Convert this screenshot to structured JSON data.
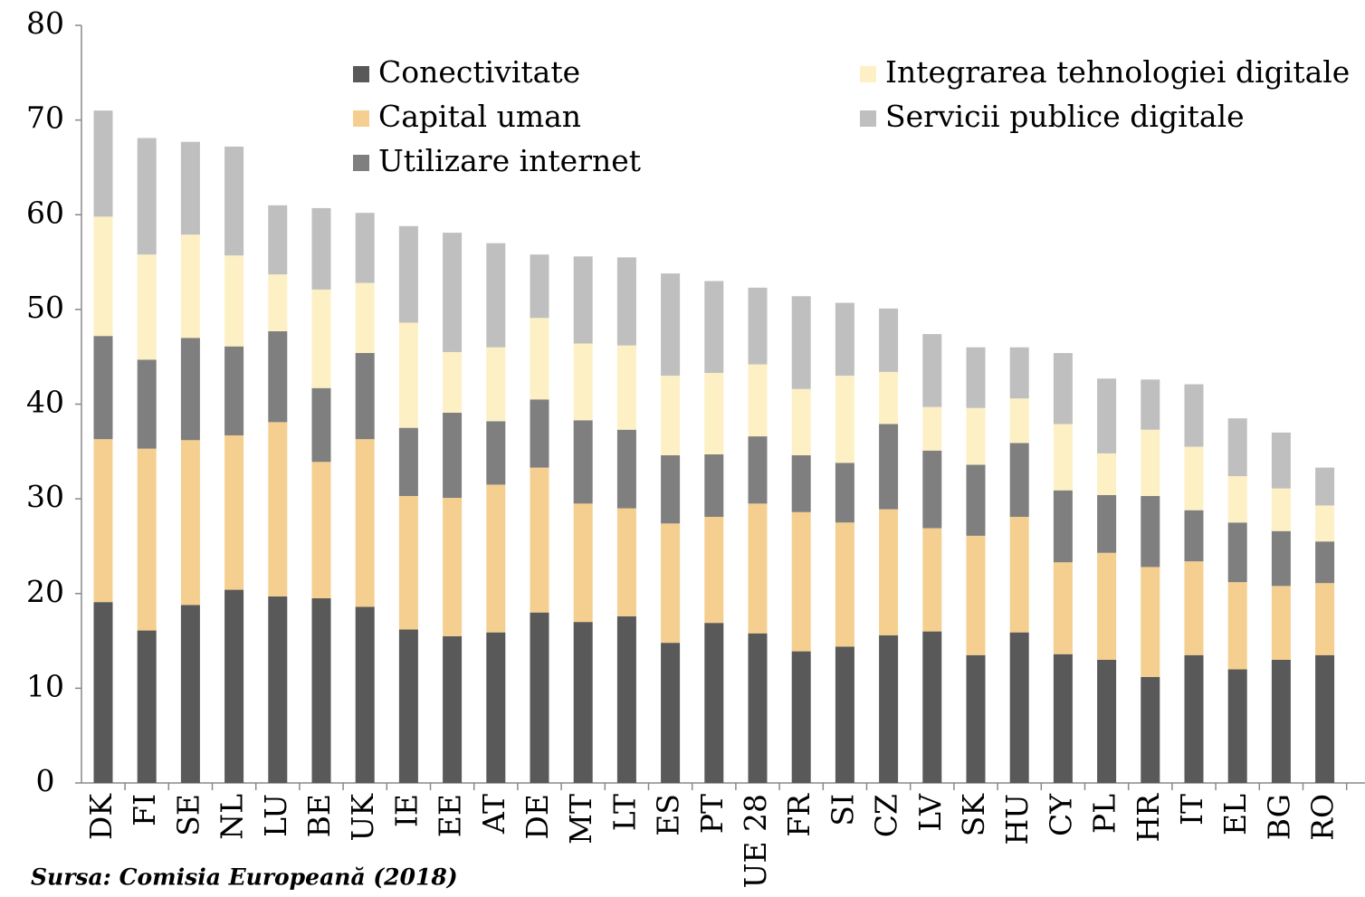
{
  "chart_data": {
    "type": "stacked_bar",
    "categories": [
      "DK",
      "FI",
      "SE",
      "NL",
      "LU",
      "BE",
      "UK",
      "IE",
      "EE",
      "AT",
      "DE",
      "MT",
      "LT",
      "ES",
      "PT",
      "UE 28",
      "FR",
      "SI",
      "CZ",
      "LV",
      "SK",
      "HU",
      "CY",
      "PL",
      "HR",
      "IT",
      "EL",
      "BG",
      "RO"
    ],
    "series": [
      {
        "name": "Conectivitate",
        "color": "#595959",
        "values": [
          19.1,
          16.1,
          18.8,
          20.4,
          19.7,
          19.5,
          18.6,
          16.2,
          15.5,
          15.9,
          18.0,
          17.0,
          17.6,
          14.8,
          16.9,
          15.8,
          13.9,
          14.4,
          15.6,
          16.0,
          13.5,
          15.9,
          13.6,
          13.0,
          11.2,
          13.5,
          12.0,
          13.0,
          13.5
        ]
      },
      {
        "name": "Capital uman",
        "color": "#f5cf8f",
        "values": [
          17.2,
          19.2,
          17.4,
          16.3,
          18.4,
          14.4,
          17.7,
          14.1,
          14.6,
          15.6,
          15.3,
          12.5,
          11.4,
          12.6,
          11.2,
          13.7,
          14.7,
          13.1,
          13.3,
          10.9,
          12.6,
          12.2,
          9.7,
          11.3,
          11.6,
          9.9,
          9.2,
          7.8,
          7.6
        ]
      },
      {
        "name": "Utilizare internet",
        "color": "#7f7f7f",
        "values": [
          10.9,
          9.4,
          10.8,
          9.4,
          9.6,
          7.8,
          9.1,
          7.2,
          9.0,
          6.7,
          7.2,
          8.8,
          8.3,
          7.2,
          6.6,
          7.1,
          6.0,
          6.3,
          9.0,
          8.2,
          7.5,
          7.8,
          7.6,
          6.1,
          7.5,
          5.4,
          6.3,
          5.8,
          4.4
        ]
      },
      {
        "name": "Integrarea tehnologiei digitale",
        "color": "#fdf0c4",
        "values": [
          12.6,
          11.1,
          10.9,
          9.6,
          6.0,
          10.4,
          7.4,
          11.1,
          6.4,
          7.8,
          8.6,
          8.1,
          8.9,
          8.4,
          8.6,
          7.6,
          7.0,
          9.2,
          5.5,
          4.6,
          6.0,
          4.7,
          7.0,
          4.4,
          7.0,
          6.7,
          4.9,
          4.5,
          3.8
        ]
      },
      {
        "name": "Servicii publice digitale",
        "color": "#bfbfbf",
        "values": [
          11.2,
          12.3,
          9.8,
          11.5,
          7.3,
          8.6,
          7.4,
          10.2,
          12.6,
          11.0,
          6.7,
          9.2,
          9.3,
          10.8,
          9.7,
          8.1,
          9.8,
          7.7,
          6.7,
          7.7,
          6.4,
          5.4,
          7.5,
          7.9,
          5.3,
          6.6,
          6.1,
          5.9,
          4.0
        ]
      }
    ],
    "ylim": [
      0,
      80
    ],
    "yticks": [
      0,
      10,
      20,
      30,
      40,
      50,
      60,
      70,
      80
    ],
    "source": "Sursa: Comisia Europeană (2018)"
  }
}
